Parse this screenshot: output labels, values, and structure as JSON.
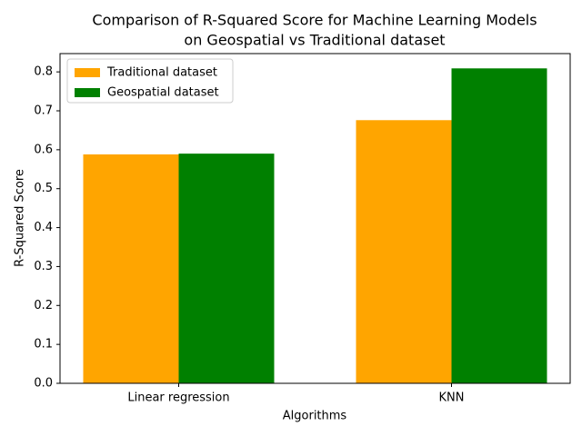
{
  "chart_data": {
    "type": "bar",
    "title": [
      "Comparison of R-Squared Score for Machine Learning Models",
      "on Geospatial vs Traditional dataset"
    ],
    "x_label": "Algorithms",
    "y_label": "R-Squared Score",
    "categories": [
      "Linear regression",
      "KNN"
    ],
    "series": [
      {
        "name": "Traditional dataset",
        "color": "#ffa500",
        "values": [
          0.588,
          0.676
        ]
      },
      {
        "name": "Geospatial dataset",
        "color": "#008000",
        "values": [
          0.59,
          0.809
        ]
      }
    ],
    "ylim": [
      0,
      0.847
    ],
    "yticks": [
      {
        "value": 0,
        "label": "0.0"
      },
      0.1,
      0.2,
      0.3,
      0.4,
      0.5,
      0.6,
      0.7,
      0.8
    ],
    "legend": "upper left",
    "grid": false
  }
}
